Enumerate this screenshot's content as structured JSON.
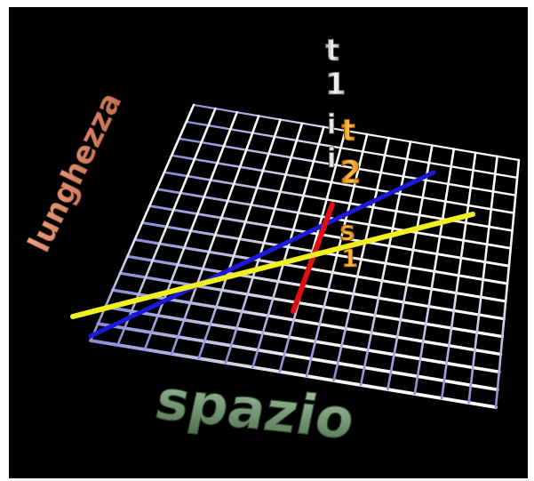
{
  "labels": {
    "space": "spazio",
    "length": "lunghezza",
    "time_letters": [
      "t",
      "1"
    ],
    "time_dots": [
      "i",
      "i"
    ],
    "time2_letters": [
      "t",
      "2"
    ],
    "s1_letters": [
      "s",
      "1"
    ]
  },
  "colors": {
    "background": "#000000",
    "grid": "#e8e8e8",
    "grid_shadow": "#8080c0",
    "blue_line": "#1a1ad8",
    "yellow_line": "#f0f020",
    "red_line": "#e01010",
    "space_label": "#7fa87f",
    "length_label": "#e08a6a",
    "t1_label": "#d8d8d8",
    "t2_label": "#f0a020"
  }
}
